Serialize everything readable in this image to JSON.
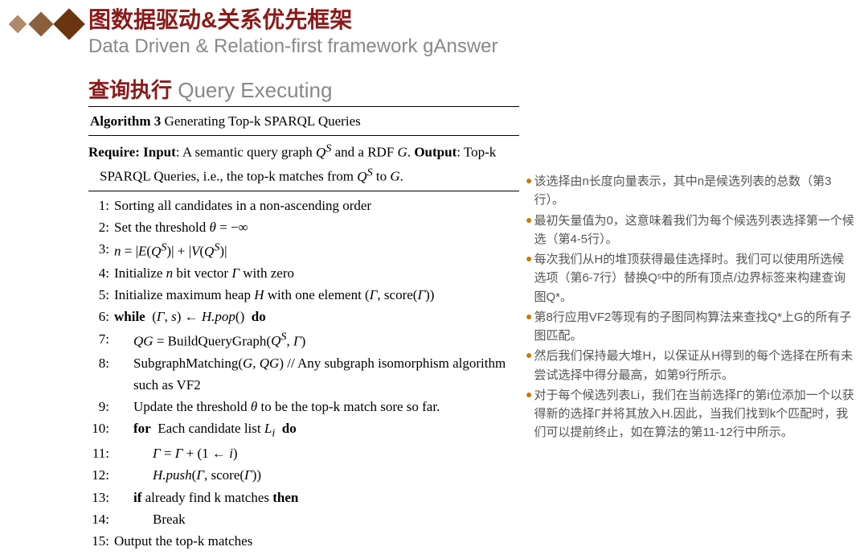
{
  "header": {
    "title_cn": "图数据驱动&关系优先框架",
    "title_en": "Data Driven & Relation-first framework  gAnswer",
    "subtitle_cn": "查询执行",
    "subtitle_en": "Query Executing"
  },
  "diamonds": {
    "color1": "#b08968",
    "color2": "#8b5e3c",
    "color3": "#6b3410"
  },
  "algorithm": {
    "title_label": "Algorithm 3",
    "title_text": "Generating Top-k SPARQL Queries",
    "require_html": "<b>Require: Input</b>: A semantic query graph <i>Q<sup>S</sup></i> and a RDF <i>G</i>. <b>Output</b>: Top-k SPARQL Queries, i.e., the top-k matches from <i>Q<sup>S</sup></i> to <i>G</i>.",
    "lines": [
      {
        "n": "1:",
        "indent": 0,
        "html": "Sorting all candidates in a non-ascending order"
      },
      {
        "n": "2:",
        "indent": 0,
        "html": "Set the threshold <i>θ</i> = −∞"
      },
      {
        "n": "3:",
        "indent": 0,
        "html": "<i>n</i> = |<i>E</i>(<i>Q<sup>S</sup></i>)| + |<i>V</i>(<i>Q<sup>S</sup></i>)|"
      },
      {
        "n": "4:",
        "indent": 0,
        "html": "Initialize <i>n</i> bit vector <i>Γ</i> with zero"
      },
      {
        "n": "5:",
        "indent": 0,
        "html": "Initialize maximum heap <i>H</i> with one element (<i>Γ</i>, score(<i>Γ</i>))"
      },
      {
        "n": "6:",
        "indent": 0,
        "html": "<b>while</b> &nbsp;(<i>Γ</i>, <i>s</i>) ← <i>H.pop</i>() &nbsp;<b>do</b>"
      },
      {
        "n": "7:",
        "indent": 1,
        "html": "<i>QG</i> = BuildQueryGraph(<i>Q<sup>S</sup></i>, <i>Γ</i>)"
      },
      {
        "n": "8:",
        "indent": 1,
        "html": "SubgraphMatching(<i>G</i>, <i>QG</i>) // Any subgraph isomorphism algorithm such as VF2"
      },
      {
        "n": "9:",
        "indent": 1,
        "html": "Update the threshold <i>θ</i> to be the top-k match sore so far."
      },
      {
        "n": "10:",
        "indent": 1,
        "html": "<b>for</b> &nbsp;Each candidate list <i>L<sub>i</sub></i> &nbsp;<b>do</b>"
      },
      {
        "n": "11:",
        "indent": 2,
        "html": "<i>Γ</i> = <i>Γ</i> + (1 ← <i>i</i>)"
      },
      {
        "n": "12:",
        "indent": 2,
        "html": "<i>H.push</i>(<i>Γ</i>, score(<i>Γ</i>))"
      },
      {
        "n": "13:",
        "indent": 1,
        "html": "<b>if</b> already find k matches <b>then</b>"
      },
      {
        "n": "14:",
        "indent": 2,
        "html": "Break"
      },
      {
        "n": "15:",
        "indent": 0,
        "html": "Output the top-k matches"
      }
    ]
  },
  "notes": {
    "bullet_color": "#cc7a00",
    "items": [
      "该选择由n长度向量表示，其中n是候选列表的总数（第3行）。",
      "最初矢量值为0，这意味着我们为每个候选列表选择第一个候选（第4-5行）。",
      "每次我们从H的堆顶获得最佳选择时。我们可以使用所选候选项（第6-7行）替换Qˢ中的所有顶点/边界标签来构建查询图Q*。",
      "第8行应用VF2等现有的子图同构算法来查找Q*上G的所有子图匹配。",
      "然后我们保持最大堆H，以保证从H得到的每个选择在所有未尝试选择中得分最高，如第9行所示。",
      "对于每个候选列表Li，我们在当前选择Γ的第i位添加一个以获得新的选择Γ并将其放入H.因此，当我们找到k个匹配时，我们可以提前终止，如在算法的第11-12行中所示。"
    ]
  }
}
